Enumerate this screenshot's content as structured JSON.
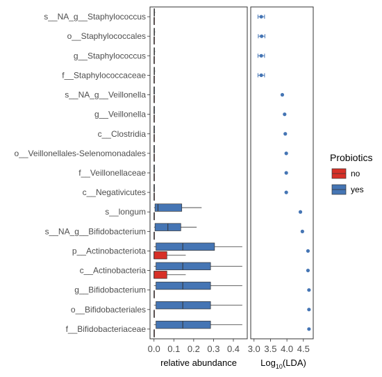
{
  "chart_data": [
    {
      "type": "box",
      "panel": "relative-abundance",
      "xlabel": "relative abundance",
      "xlim": [
        -0.02,
        0.47
      ],
      "xticks": [
        0.0,
        0.1,
        0.2,
        0.3,
        0.4
      ],
      "xtick_labels": [
        "0.0",
        "0.1",
        "0.2",
        "0.3",
        "0.4"
      ],
      "categories": [
        "s__NA_g__Staphylococcus",
        "o__Staphylococcales",
        "g__Staphylococcus",
        "f__Staphylococcaceae",
        "s__NA_g__Veillonella",
        "g__Veillonella",
        "c__Clostridia",
        "o__Veillonellales-Selenomonadales",
        "f__Veillonellaceae",
        "c__Negativicutes",
        "s__longum",
        "s__NA_g__Bifidobacterium",
        "p__Actinobacteriota",
        "c__Actinobacteria",
        "g__Bifidobacterium",
        "o__Bifidobacteriales",
        "f__Bifidobacteriaceae"
      ],
      "series": [
        {
          "name": "no",
          "boxes": [
            {
              "min": 0.0,
              "q1": 0.0,
              "median": 0.0,
              "q3": 0.001,
              "max": 0.002
            },
            {
              "min": 0.0,
              "q1": 0.0,
              "median": 0.0,
              "q3": 0.001,
              "max": 0.002
            },
            {
              "min": 0.0,
              "q1": 0.0,
              "median": 0.0,
              "q3": 0.001,
              "max": 0.002
            },
            {
              "min": 0.0,
              "q1": 0.0,
              "median": 0.0,
              "q3": 0.001,
              "max": 0.002
            },
            {
              "min": 0.0,
              "q1": 0.0,
              "median": 0.0,
              "q3": 0.0,
              "max": 0.001
            },
            {
              "min": 0.0,
              "q1": 0.0,
              "median": 0.0,
              "q3": 0.0,
              "max": 0.001
            },
            {
              "min": 0.0,
              "q1": 0.0,
              "median": 0.0,
              "q3": 0.0,
              "max": 0.001
            },
            {
              "min": 0.0,
              "q1": 0.0,
              "median": 0.0,
              "q3": 0.0,
              "max": 0.001
            },
            {
              "min": 0.0,
              "q1": 0.0,
              "median": 0.0,
              "q3": 0.0,
              "max": 0.001
            },
            {
              "min": 0.0,
              "q1": 0.0,
              "median": 0.0,
              "q3": 0.0,
              "max": 0.001
            },
            {
              "min": 0.0,
              "q1": 0.0,
              "median": 0.0,
              "q3": 0.0,
              "max": 0.001
            },
            {
              "min": 0.0,
              "q1": 0.0,
              "median": 0.0,
              "q3": 0.0,
              "max": 0.001
            },
            {
              "min": 0.0,
              "q1": 0.0,
              "median": 0.0,
              "q3": 0.065,
              "max": 0.16
            },
            {
              "min": 0.0,
              "q1": 0.0,
              "median": 0.0,
              "q3": 0.065,
              "max": 0.16
            },
            {
              "min": 0.0,
              "q1": 0.0,
              "median": 0.0,
              "q3": 0.0,
              "max": 0.001
            },
            {
              "min": 0.0,
              "q1": 0.0,
              "median": 0.0,
              "q3": 0.0,
              "max": 0.001
            },
            {
              "min": 0.0,
              "q1": 0.0,
              "median": 0.0,
              "q3": 0.0,
              "max": 0.001
            }
          ]
        },
        {
          "name": "yes",
          "boxes": [
            {
              "min": 0.0,
              "q1": 0.0,
              "median": 0.001,
              "q3": 0.003,
              "max": 0.006
            },
            {
              "min": 0.0,
              "q1": 0.0,
              "median": 0.001,
              "q3": 0.003,
              "max": 0.006
            },
            {
              "min": 0.0,
              "q1": 0.0,
              "median": 0.001,
              "q3": 0.003,
              "max": 0.006
            },
            {
              "min": 0.0,
              "q1": 0.0,
              "median": 0.001,
              "q3": 0.003,
              "max": 0.006
            },
            {
              "min": 0.0,
              "q1": 0.0,
              "median": 0.0,
              "q3": 0.002,
              "max": 0.004
            },
            {
              "min": 0.0,
              "q1": 0.0,
              "median": 0.0,
              "q3": 0.002,
              "max": 0.004
            },
            {
              "min": 0.0,
              "q1": 0.0,
              "median": 0.0,
              "q3": 0.002,
              "max": 0.004
            },
            {
              "min": 0.0,
              "q1": 0.0,
              "median": 0.0,
              "q3": 0.002,
              "max": 0.004
            },
            {
              "min": 0.0,
              "q1": 0.0,
              "median": 0.0,
              "q3": 0.002,
              "max": 0.004
            },
            {
              "min": 0.0,
              "q1": 0.0,
              "median": 0.0,
              "q3": 0.002,
              "max": 0.004
            },
            {
              "min": 0.0,
              "q1": 0.005,
              "median": 0.02,
              "q3": 0.14,
              "max": 0.24
            },
            {
              "min": 0.0,
              "q1": 0.005,
              "median": 0.07,
              "q3": 0.135,
              "max": 0.215
            },
            {
              "min": 0.0,
              "q1": 0.01,
              "median": 0.145,
              "q3": 0.305,
              "max": 0.445
            },
            {
              "min": 0.0,
              "q1": 0.01,
              "median": 0.145,
              "q3": 0.285,
              "max": 0.445
            },
            {
              "min": 0.0,
              "q1": 0.01,
              "median": 0.145,
              "q3": 0.285,
              "max": 0.445
            },
            {
              "min": 0.0,
              "q1": 0.01,
              "median": 0.145,
              "q3": 0.285,
              "max": 0.445
            },
            {
              "min": 0.0,
              "q1": 0.01,
              "median": 0.145,
              "q3": 0.285,
              "max": 0.445
            }
          ]
        }
      ]
    },
    {
      "type": "scatter",
      "panel": "lda",
      "xlabel": "Log10(LDA)",
      "xlim": [
        2.9,
        4.8
      ],
      "xticks": [
        3.0,
        3.5,
        4.0,
        4.5
      ],
      "xtick_labels": [
        "3.0",
        "3.5",
        "4.0",
        "4.5"
      ],
      "xtick_minor_labels": [
        "3.0",
        "3.5",
        "4.0",
        "4.5"
      ],
      "group": "yes",
      "points": [
        {
          "category": "s__NA_g__Staphylococcus",
          "value": 3.22,
          "err": 0.1
        },
        {
          "category": "o__Staphylococcales",
          "value": 3.23,
          "err": 0.1
        },
        {
          "category": "g__Staphylococcus",
          "value": 3.22,
          "err": 0.1
        },
        {
          "category": "f__Staphylococcaceae",
          "value": 3.22,
          "err": 0.1
        },
        {
          "category": "s__NA_g__Veillonella",
          "value": 3.86,
          "err": 0.02
        },
        {
          "category": "g__Veillonella",
          "value": 3.93,
          "err": 0.02
        },
        {
          "category": "c__Clostridia",
          "value": 3.95,
          "err": 0.02
        },
        {
          "category": "o__Veillonellales-Selenomonadales",
          "value": 3.98,
          "err": 0.02
        },
        {
          "category": "f__Veillonellaceae",
          "value": 3.98,
          "err": 0.02
        },
        {
          "category": "c__Negativicutes",
          "value": 3.98,
          "err": 0.02
        },
        {
          "category": "s__longum",
          "value": 4.41,
          "err": 0.02
        },
        {
          "category": "s__NA_g__Bifidobacterium",
          "value": 4.47,
          "err": 0.02
        },
        {
          "category": "p__Actinobacteriota",
          "value": 4.64,
          "err": 0.01
        },
        {
          "category": "c__Actinobacteria",
          "value": 4.64,
          "err": 0.01
        },
        {
          "category": "g__Bifidobacterium",
          "value": 4.67,
          "err": 0.01
        },
        {
          "category": "o__Bifidobacteriales",
          "value": 4.67,
          "err": 0.01
        },
        {
          "category": "f__Bifidobacteriaceae",
          "value": 4.67,
          "err": 0.01
        }
      ]
    }
  ],
  "axis_title_left": "relative abundance",
  "axis_title_right_prefix": "Log",
  "axis_title_right_sub": "10",
  "axis_title_right_suffix": "(LDA)",
  "right_tick_labels_text": "3.03.54.04.5",
  "legend": {
    "title": "Probiotics",
    "items": [
      {
        "label": "no",
        "color": "#d73027"
      },
      {
        "label": "yes",
        "color": "#4575b4"
      }
    ]
  },
  "colors": {
    "no": "#d73027",
    "yes": "#4575b4"
  }
}
